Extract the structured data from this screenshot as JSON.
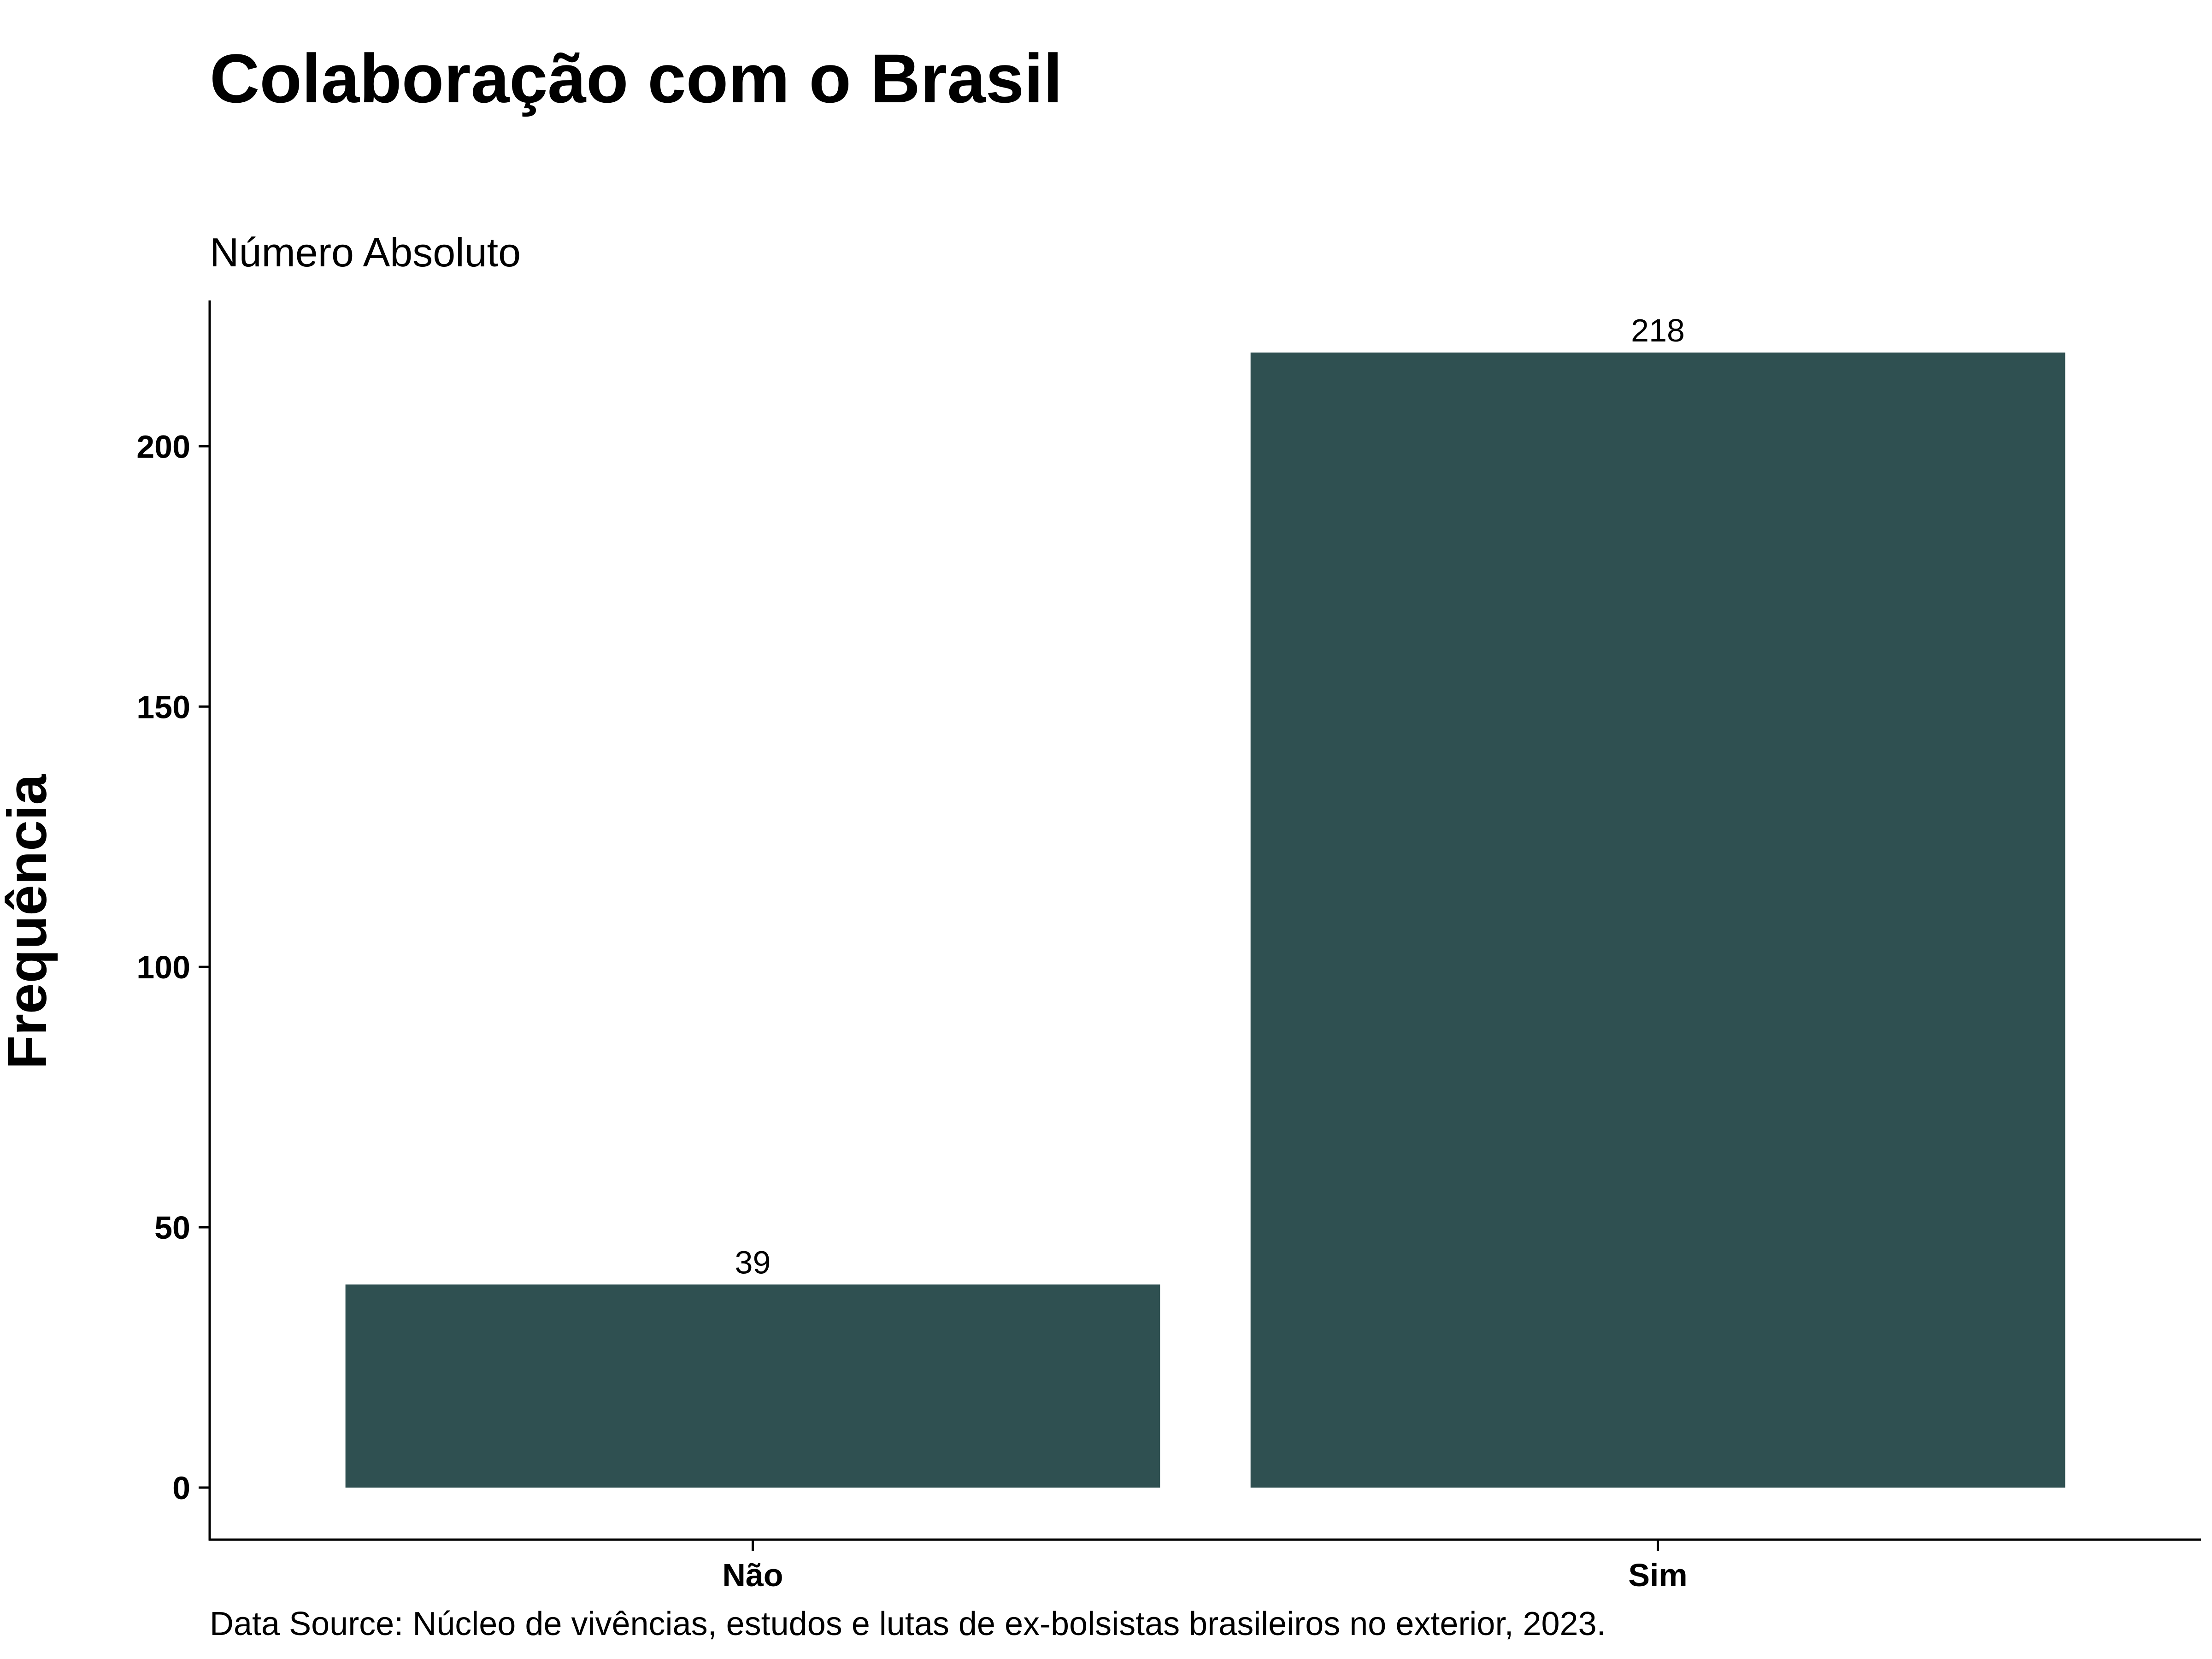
{
  "chart_data": {
    "type": "bar",
    "title": "Colaboração com o Brasil",
    "subtitle": "Número Absoluto",
    "ylabel": "Frequência",
    "xlabel": "",
    "categories": [
      "Não",
      "Sim"
    ],
    "values": [
      39,
      218
    ],
    "data_labels": [
      "39",
      "218"
    ],
    "ylim": [
      -10,
      228
    ],
    "yticks": [
      0,
      50,
      100,
      150,
      200
    ],
    "ytick_labels": [
      "0",
      "50",
      "100",
      "150",
      "200"
    ],
    "grid": false,
    "legend": "none",
    "caption": "Data Source: Núcleo de vivências, estudos e lutas de ex-bolsistas brasileiros no exterior, 2023.",
    "bar_color": "#2f5051"
  }
}
